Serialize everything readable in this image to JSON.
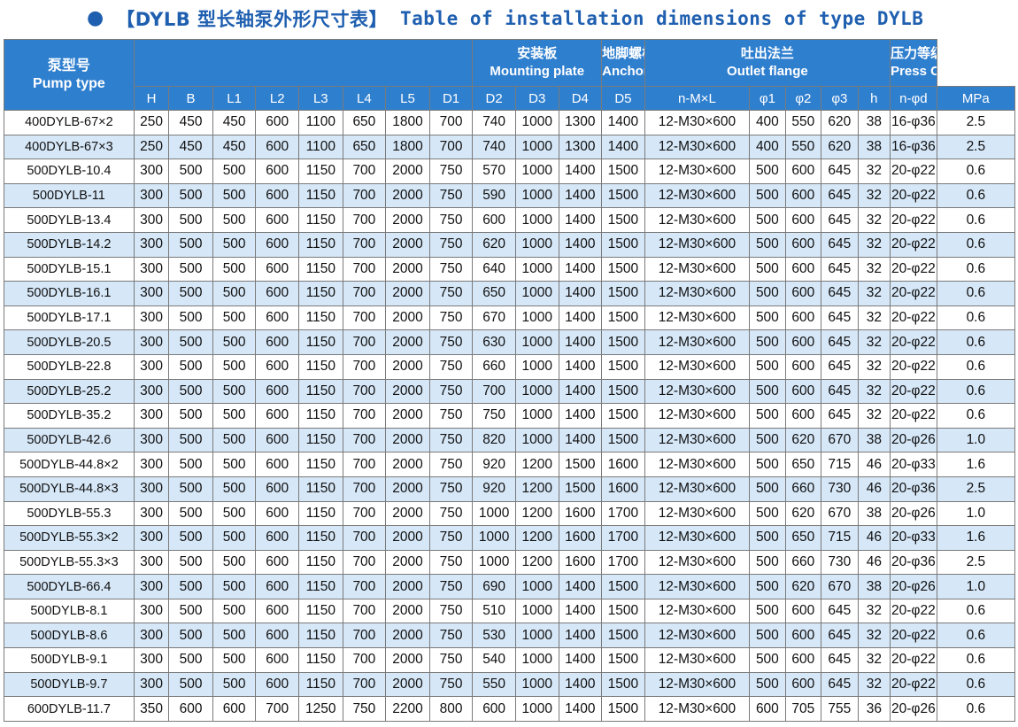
{
  "title": {
    "bullet": "●",
    "cn": "【DYLB 型长轴泵外形尺寸表】",
    "en": "Table of installation dimensions of type DYLB"
  },
  "header": {
    "pump_type_cn": "泵型号",
    "pump_type_en": "Pump type",
    "mounting_cn": "安装板",
    "mounting_en": "Mounting plate",
    "anchor_cn": "地脚螺栓",
    "anchor_en": "Anchor bolt",
    "outlet_cn": "吐出法兰",
    "outlet_en": "Outlet flange",
    "press_cn": "压力等级",
    "press_en": "Press Class",
    "columns": [
      "H",
      "B",
      "L1",
      "L2",
      "L3",
      "L4",
      "L5",
      "D1",
      "D2",
      "D3",
      "D4",
      "D5",
      "n-M×L",
      "φ1",
      "φ2",
      "φ3",
      "h",
      "n-φd",
      "MPa"
    ]
  },
  "rows": [
    [
      "400DYLB-67×2",
      "250",
      "450",
      "450",
      "600",
      "1100",
      "650",
      "1800",
      "700",
      "740",
      "1000",
      "1300",
      "1400",
      "12-M30×600",
      "400",
      "550",
      "620",
      "38",
      "16-φ36",
      "2.5"
    ],
    [
      "400DYLB-67×3",
      "250",
      "450",
      "450",
      "600",
      "1100",
      "650",
      "1800",
      "700",
      "740",
      "1000",
      "1300",
      "1400",
      "12-M30×600",
      "400",
      "550",
      "620",
      "38",
      "16-φ36",
      "2.5"
    ],
    [
      "500DYLB-10.4",
      "300",
      "500",
      "500",
      "600",
      "1150",
      "700",
      "2000",
      "750",
      "570",
      "1000",
      "1400",
      "1500",
      "12-M30×600",
      "500",
      "600",
      "645",
      "32",
      "20-φ22",
      "0.6"
    ],
    [
      "500DYLB-11",
      "300",
      "500",
      "500",
      "600",
      "1150",
      "700",
      "2000",
      "750",
      "590",
      "1000",
      "1400",
      "1500",
      "12-M30×600",
      "500",
      "600",
      "645",
      "32",
      "20-φ22",
      "0.6"
    ],
    [
      "500DYLB-13.4",
      "300",
      "500",
      "500",
      "600",
      "1150",
      "700",
      "2000",
      "750",
      "600",
      "1000",
      "1400",
      "1500",
      "12-M30×600",
      "500",
      "600",
      "645",
      "32",
      "20-φ22",
      "0.6"
    ],
    [
      "500DYLB-14.2",
      "300",
      "500",
      "500",
      "600",
      "1150",
      "700",
      "2000",
      "750",
      "620",
      "1000",
      "1400",
      "1500",
      "12-M30×600",
      "500",
      "600",
      "645",
      "32",
      "20-φ22",
      "0.6"
    ],
    [
      "500DYLB-15.1",
      "300",
      "500",
      "500",
      "600",
      "1150",
      "700",
      "2000",
      "750",
      "640",
      "1000",
      "1400",
      "1500",
      "12-M30×600",
      "500",
      "600",
      "645",
      "32",
      "20-φ22",
      "0.6"
    ],
    [
      "500DYLB-16.1",
      "300",
      "500",
      "500",
      "600",
      "1150",
      "700",
      "2000",
      "750",
      "650",
      "1000",
      "1400",
      "1500",
      "12-M30×600",
      "500",
      "600",
      "645",
      "32",
      "20-φ22",
      "0.6"
    ],
    [
      "500DYLB-17.1",
      "300",
      "500",
      "500",
      "600",
      "1150",
      "700",
      "2000",
      "750",
      "670",
      "1000",
      "1400",
      "1500",
      "12-M30×600",
      "500",
      "600",
      "645",
      "32",
      "20-φ22",
      "0.6"
    ],
    [
      "500DYLB-20.5",
      "300",
      "500",
      "500",
      "600",
      "1150",
      "700",
      "2000",
      "750",
      "630",
      "1000",
      "1400",
      "1500",
      "12-M30×600",
      "500",
      "600",
      "645",
      "32",
      "20-φ22",
      "0.6"
    ],
    [
      "500DYLB-22.8",
      "300",
      "500",
      "500",
      "600",
      "1150",
      "700",
      "2000",
      "750",
      "660",
      "1000",
      "1400",
      "1500",
      "12-M30×600",
      "500",
      "600",
      "645",
      "32",
      "20-φ22",
      "0.6"
    ],
    [
      "500DYLB-25.2",
      "300",
      "500",
      "500",
      "600",
      "1150",
      "700",
      "2000",
      "750",
      "700",
      "1000",
      "1400",
      "1500",
      "12-M30×600",
      "500",
      "600",
      "645",
      "32",
      "20-φ22",
      "0.6"
    ],
    [
      "500DYLB-35.2",
      "300",
      "500",
      "500",
      "600",
      "1150",
      "700",
      "2000",
      "750",
      "750",
      "1000",
      "1400",
      "1500",
      "12-M30×600",
      "500",
      "600",
      "645",
      "32",
      "20-φ22",
      "0.6"
    ],
    [
      "500DYLB-42.6",
      "300",
      "500",
      "500",
      "600",
      "1150",
      "700",
      "2000",
      "750",
      "820",
      "1000",
      "1400",
      "1500",
      "12-M30×600",
      "500",
      "620",
      "670",
      "38",
      "20-φ26",
      "1.0"
    ],
    [
      "500DYLB-44.8×2",
      "300",
      "500",
      "500",
      "600",
      "1150",
      "700",
      "2000",
      "750",
      "920",
      "1200",
      "1500",
      "1600",
      "12-M30×600",
      "500",
      "650",
      "715",
      "46",
      "20-φ33",
      "1.6"
    ],
    [
      "500DYLB-44.8×3",
      "300",
      "500",
      "500",
      "600",
      "1150",
      "700",
      "2000",
      "750",
      "920",
      "1200",
      "1500",
      "1600",
      "12-M30×600",
      "500",
      "660",
      "730",
      "46",
      "20-φ36",
      "2.5"
    ],
    [
      "500DYLB-55.3",
      "300",
      "500",
      "500",
      "600",
      "1150",
      "700",
      "2000",
      "750",
      "1000",
      "1200",
      "1600",
      "1700",
      "12-M30×600",
      "500",
      "620",
      "670",
      "38",
      "20-φ26",
      "1.0"
    ],
    [
      "500DYLB-55.3×2",
      "300",
      "500",
      "500",
      "600",
      "1150",
      "700",
      "2000",
      "750",
      "1000",
      "1200",
      "1600",
      "1700",
      "12-M30×600",
      "500",
      "650",
      "715",
      "46",
      "20-φ33",
      "1.6"
    ],
    [
      "500DYLB-55.3×3",
      "300",
      "500",
      "500",
      "600",
      "1150",
      "700",
      "2000",
      "750",
      "1000",
      "1200",
      "1600",
      "1700",
      "12-M30×600",
      "500",
      "660",
      "730",
      "46",
      "20-φ36",
      "2.5"
    ],
    [
      "500DYLB-66.4",
      "300",
      "500",
      "500",
      "600",
      "1150",
      "700",
      "2000",
      "750",
      "690",
      "1000",
      "1400",
      "1500",
      "12-M30×600",
      "500",
      "620",
      "670",
      "38",
      "20-φ26",
      "1.0"
    ],
    [
      "500DYLB-8.1",
      "300",
      "500",
      "500",
      "600",
      "1150",
      "700",
      "2000",
      "750",
      "510",
      "1000",
      "1400",
      "1500",
      "12-M30×600",
      "500",
      "600",
      "645",
      "32",
      "20-φ22",
      "0.6"
    ],
    [
      "500DYLB-8.6",
      "300",
      "500",
      "500",
      "600",
      "1150",
      "700",
      "2000",
      "750",
      "530",
      "1000",
      "1400",
      "1500",
      "12-M30×600",
      "500",
      "600",
      "645",
      "32",
      "20-φ22",
      "0.6"
    ],
    [
      "500DYLB-9.1",
      "300",
      "500",
      "500",
      "600",
      "1150",
      "700",
      "2000",
      "750",
      "540",
      "1000",
      "1400",
      "1500",
      "12-M30×600",
      "500",
      "600",
      "645",
      "32",
      "20-φ22",
      "0.6"
    ],
    [
      "500DYLB-9.7",
      "300",
      "500",
      "500",
      "600",
      "1150",
      "700",
      "2000",
      "750",
      "550",
      "1000",
      "1400",
      "1500",
      "12-M30×600",
      "500",
      "600",
      "645",
      "32",
      "20-φ22",
      "0.6"
    ],
    [
      "600DYLB-11.7",
      "350",
      "600",
      "600",
      "700",
      "1250",
      "750",
      "2200",
      "800",
      "600",
      "1000",
      "1400",
      "1500",
      "12-M30×600",
      "600",
      "705",
      "755",
      "36",
      "20-φ26",
      "0.6"
    ]
  ],
  "colors": {
    "title": "#1f5fb0",
    "header_bg": "#2f7fcf",
    "header_text": "#ffffff",
    "stripe_bg": "#d6e7f7",
    "grid": "#7a7a7a"
  }
}
